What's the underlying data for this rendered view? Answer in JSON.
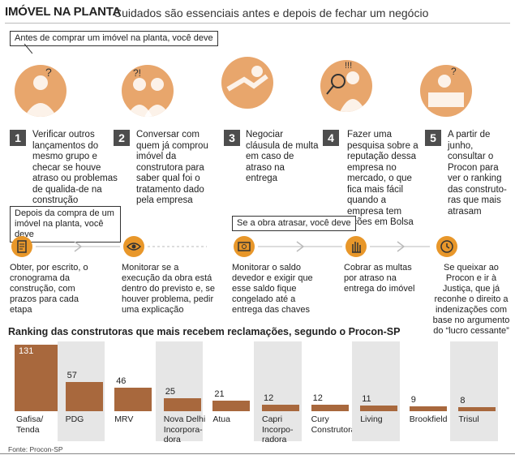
{
  "header": {
    "title": "IMÓVEL NA PLANTA",
    "subtitle": "Cuidados são essenciais antes e depois de fechar um negócio"
  },
  "before": {
    "label": "Antes de comprar um imóvel na planta, você deve",
    "steps": [
      {
        "num": "1",
        "text": "Verificar outros lançamentos do mesmo grupo e checar se houve atraso ou problemas de qualida-de na construção"
      },
      {
        "num": "2",
        "text": "Conversar com quem já comprou imóvel da construtora para saber qual foi o tratamento dado pela empresa"
      },
      {
        "num": "3",
        "text": "Negociar cláusula de multa em caso de atraso na entrega"
      },
      {
        "num": "4",
        "text": "Fazer uma pesquisa sobre a reputação dessa empresa no mercado, o que fica mais fácil quando a empresa tem ações em Bolsa"
      },
      {
        "num": "5",
        "text": "A partir de junho, consultar o Procon para ver o ranking das construto-ras que mais atrasam"
      }
    ]
  },
  "after": {
    "label": "Depois da compra de um imóvel na planta, você deve",
    "items": [
      {
        "text": "Obter, por escrito, o cronograma da construção, com prazos para cada etapa",
        "icon": "document-icon"
      },
      {
        "text": "Monitorar se a execução da obra está dentro do previsto e, se houver problema, pedir uma explicação",
        "icon": "eye-icon"
      }
    ]
  },
  "delay": {
    "label": "Se a obra atrasar, você deve",
    "items": [
      {
        "text": "Monitorar o saldo devedor e exigir que esse saldo fique congelado até a entrega das chaves",
        "icon": "money-icon"
      },
      {
        "text": "Cobrar as multas por atraso na entrega do imóvel",
        "icon": "hand-icon"
      },
      {
        "text": "Se queixar ao Procon e ir à Justiça, que já reconhe o direito a indenizações com base no argumento do “lucro cessante”",
        "icon": "clock-icon"
      }
    ]
  },
  "chart_data": {
    "type": "bar",
    "title": "Ranking das construtoras que mais recebem reclamações, segundo o Procon-SP",
    "categories": [
      "Gafisa/ Tenda",
      "PDG",
      "MRV",
      "Nova Delhi Incorpora-dora",
      "Atua",
      "Capri Incorpo-radora",
      "Cury Construtora",
      "Living",
      "Brookfield",
      "Trisul"
    ],
    "values": [
      131,
      57,
      46,
      25,
      21,
      12,
      12,
      11,
      9,
      8
    ],
    "ylim": [
      0,
      131
    ],
    "grid": false,
    "colors": {
      "bar": "#a8683d",
      "band": "#e6e6e6"
    }
  },
  "source": "Fonte: Procon-SP",
  "colors": {
    "accent": "#e8972a",
    "illustration": "#e8a66c",
    "step_box": "#4d4d4d"
  }
}
